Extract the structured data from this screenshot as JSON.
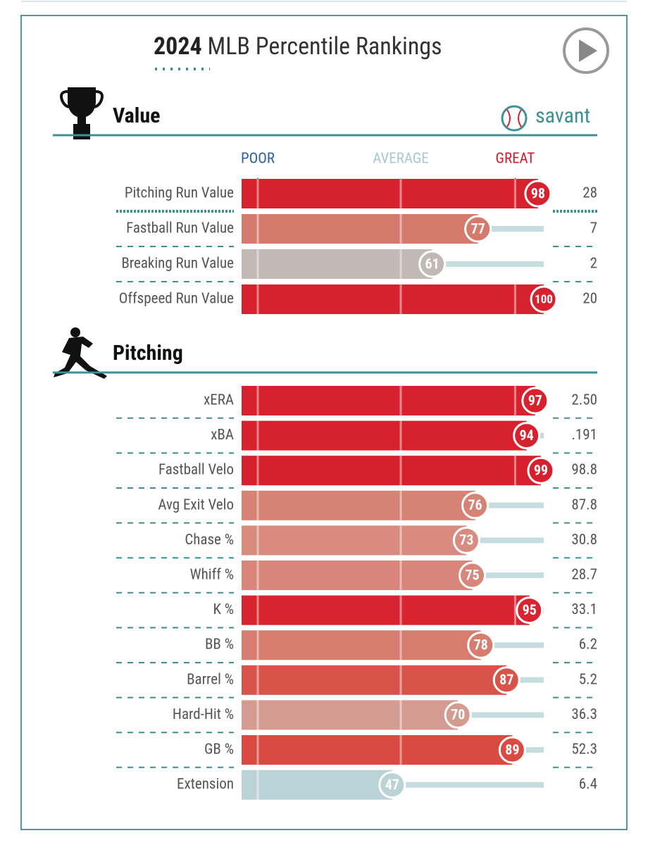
{
  "header": {
    "year": "2024",
    "title": "MLB Percentile Rankings",
    "brand": "savant"
  },
  "chart_data": [
    {
      "type": "bar",
      "title": "Value",
      "categories": [
        "Pitching Run Value",
        "Fastball Run Value",
        "Breaking Run Value",
        "Offspeed Run Value"
      ],
      "values": [
        98,
        77,
        61,
        100
      ],
      "stat_labels": [
        "28",
        "7",
        "2",
        "20"
      ],
      "colors": [
        "#d7212e",
        "#d57b6e",
        "#c2b9b6",
        "#d7212e"
      ],
      "xlim": [
        0,
        100
      ],
      "xticks": [
        {
          "value": 0,
          "label": "POOR"
        },
        {
          "value": 50,
          "label": "AVERAGE"
        },
        {
          "value": 90,
          "label": "GREAT"
        }
      ]
    },
    {
      "type": "bar",
      "title": "Pitching",
      "categories": [
        "xERA",
        "xBA",
        "Fastball Velo",
        "Avg Exit Velo",
        "Chase %",
        "Whiff %",
        "K %",
        "BB %",
        "Barrel %",
        "Hard-Hit %",
        "GB %",
        "Extension"
      ],
      "values": [
        97,
        94,
        99,
        76,
        73,
        75,
        95,
        78,
        87,
        70,
        89,
        47
      ],
      "stat_labels": [
        "2.50",
        ".191",
        "98.8",
        "87.8",
        "30.8",
        "28.7",
        "33.1",
        "6.2",
        "5.2",
        "36.3",
        "52.3",
        "6.4"
      ],
      "colors": [
        "#d7212e",
        "#d7222e",
        "#d7202d",
        "#d68274",
        "#d88b7e",
        "#d78679",
        "#d72430",
        "#d67d70",
        "#d8544b",
        "#d49b91",
        "#d84a42",
        "#b9d3d7"
      ],
      "xlim": [
        0,
        100
      ]
    }
  ]
}
